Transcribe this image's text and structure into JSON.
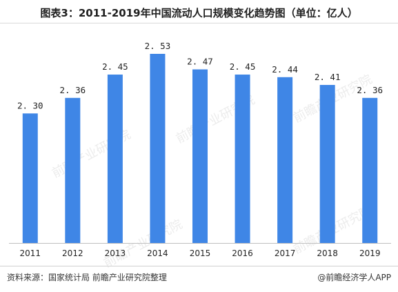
{
  "title": "图表3：2011-2019年中国流动人口规模变化趋势图（单位：亿人）",
  "source": "资料来源：国家统计局  前瞻产业研究院整理",
  "brand": "@前瞻经济学人APP",
  "watermark": "前瞻产业研究院",
  "chart_data": {
    "type": "bar",
    "title": "图表3：2011-2019年中国流动人口规模变化趋势图（单位：亿人）",
    "categories": [
      "2011",
      "2012",
      "2013",
      "2014",
      "2015",
      "2016",
      "2017",
      "2018",
      "2019"
    ],
    "values": [
      2.3,
      2.36,
      2.45,
      2.53,
      2.47,
      2.45,
      2.44,
      2.41,
      2.36
    ],
    "labels": [
      "2. 30",
      "2. 36",
      "2. 45",
      "2. 53",
      "2. 47",
      "2. 45",
      "2. 44",
      "2. 41",
      "2. 36"
    ],
    "bar_color": "#3f86e6",
    "ylim": [
      1.8,
      2.53
    ],
    "grid": false,
    "legend": "none"
  }
}
